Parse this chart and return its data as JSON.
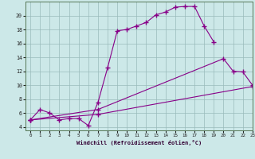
{
  "xlabel": "Windchill (Refroidissement éolien,°C)",
  "bg_color": "#cce8e8",
  "line_color": "#880088",
  "grid_color": "#99bbbb",
  "line1_x": [
    0,
    1,
    2,
    3,
    4,
    5,
    6,
    7,
    8,
    9,
    10,
    11,
    12,
    13,
    14,
    15,
    16,
    17,
    18,
    19
  ],
  "line1_y": [
    5.0,
    6.5,
    6.0,
    5.0,
    5.2,
    5.2,
    4.2,
    7.5,
    12.5,
    17.8,
    18.0,
    18.5,
    19.0,
    20.1,
    20.5,
    21.2,
    21.3,
    21.3,
    18.5,
    16.2
  ],
  "line2_x": [
    0,
    7,
    20,
    21,
    22,
    23
  ],
  "line2_y": [
    5.0,
    6.5,
    13.8,
    12.0,
    11.9,
    10.0
  ],
  "line3_x": [
    0,
    7,
    23
  ],
  "line3_y": [
    5.0,
    5.8,
    9.8
  ],
  "xlim": [
    -0.5,
    23
  ],
  "ylim": [
    3.5,
    22
  ],
  "yticks": [
    4,
    6,
    8,
    10,
    12,
    14,
    16,
    18,
    20
  ],
  "xticks": [
    0,
    1,
    2,
    3,
    4,
    5,
    6,
    7,
    8,
    9,
    10,
    11,
    12,
    13,
    14,
    15,
    16,
    17,
    18,
    19,
    20,
    21,
    22,
    23
  ]
}
